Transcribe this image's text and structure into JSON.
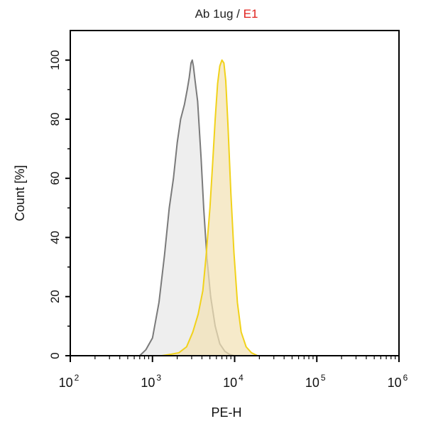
{
  "chart_data": {
    "type": "area",
    "title_parts": [
      {
        "text": "Ab 1ug",
        "color": "#222222"
      },
      {
        "text": " / ",
        "color": "#222222"
      },
      {
        "text": "E1",
        "color": "#e0211d"
      }
    ],
    "xlabel": "PE-H",
    "ylabel": "Count [%]",
    "xscale": "log",
    "xlim": [
      100,
      1000000
    ],
    "ylim": [
      0,
      110
    ],
    "x_ticks": [
      {
        "value": 100,
        "base": "10",
        "exp": "2"
      },
      {
        "value": 1000,
        "base": "10",
        "exp": "3"
      },
      {
        "value": 10000,
        "base": "10",
        "exp": "4"
      },
      {
        "value": 100000,
        "base": "10",
        "exp": "5"
      },
      {
        "value": 1000000,
        "base": "10",
        "exp": "6"
      }
    ],
    "y_ticks": [
      0,
      20,
      40,
      60,
      80,
      100
    ],
    "grid": false,
    "legend": "none",
    "series": [
      {
        "style": {
          "stroke": "#7a7a7a",
          "fill": "#ebebeb",
          "fill_opacity": 0.85
        },
        "x": [
          700,
          830,
          1000,
          1200,
          1400,
          1600,
          1800,
          2000,
          2200,
          2450,
          2650,
          2800,
          2950,
          3050,
          3150,
          3300,
          3550,
          3900,
          4200,
          4600,
          5100,
          5800,
          6600,
          7600,
          8600,
          9800
        ],
        "y": [
          0,
          2,
          6,
          18,
          34,
          50,
          60,
          72,
          80,
          85,
          90,
          94,
          99,
          100,
          98,
          93,
          86,
          67,
          50,
          33,
          20,
          10,
          4,
          1.5,
          0.5,
          0
        ]
      },
      {
        "style": {
          "stroke": "#f1d21a",
          "fill": "#f2e2b5",
          "fill_opacity": 0.72
        },
        "x": [
          1300,
          1700,
          2100,
          2600,
          3100,
          3600,
          4100,
          4500,
          5000,
          5400,
          5800,
          6200,
          6600,
          7000,
          7400,
          7800,
          8300,
          9000,
          9800,
          10800,
          12000,
          13800,
          16000,
          19000
        ],
        "y": [
          0,
          0.5,
          1,
          3,
          8,
          14,
          22,
          34,
          50,
          65,
          80,
          92,
          98,
          100,
          99,
          93,
          78,
          55,
          35,
          18,
          8,
          3,
          1,
          0
        ]
      }
    ]
  }
}
